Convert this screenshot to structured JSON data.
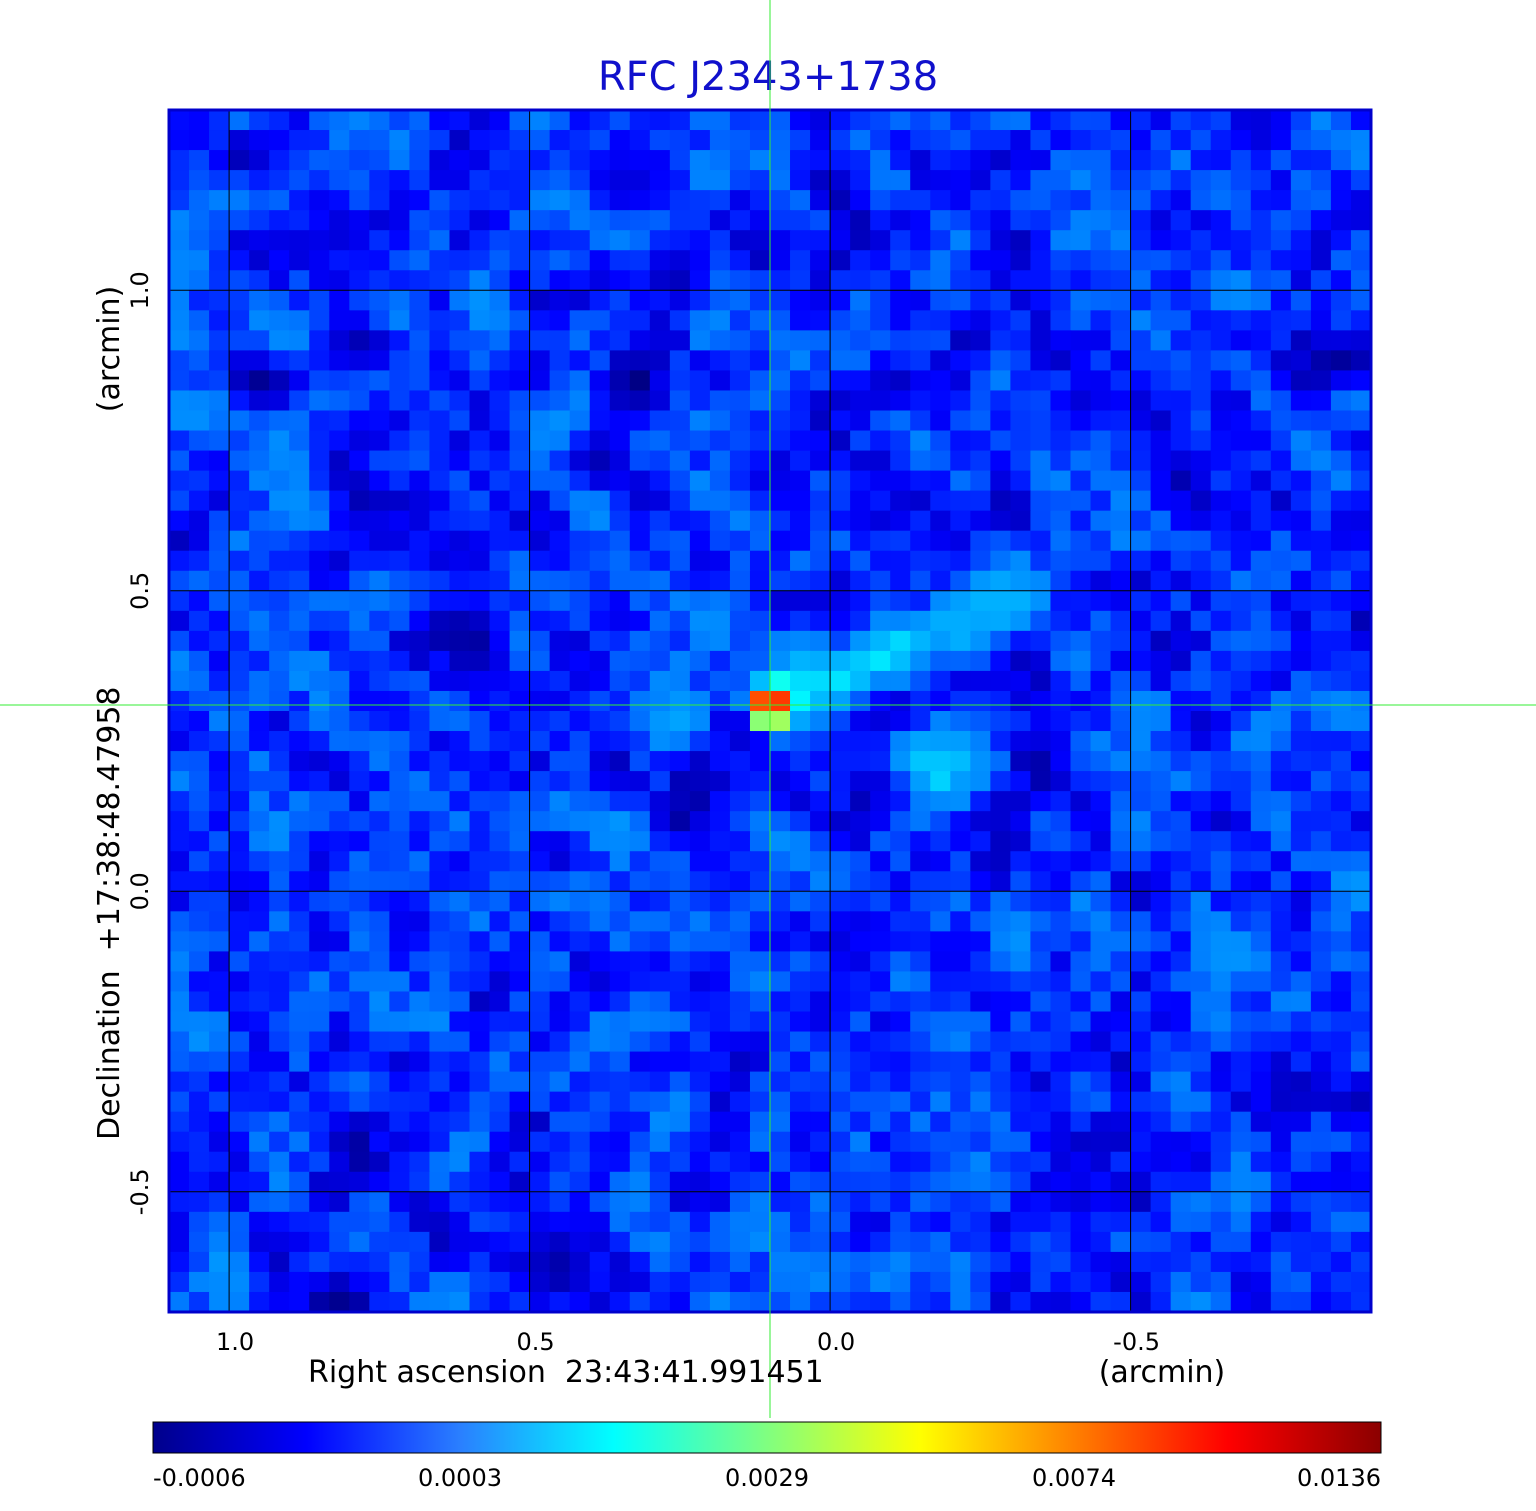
{
  "chart_data": {
    "type": "heatmap",
    "title": "RFC J2343+1738",
    "xlabel": "Right ascension  23:43:41.991451",
    "xunit": "(arcmin)",
    "ylabel": "Declination  +17:38:48.47958",
    "yunit": "(arcmin)",
    "xlim": [
      1.1,
      -0.9
    ],
    "ylim": [
      -0.7,
      1.3
    ],
    "x_ticks": [
      {
        "value": 1.0,
        "label": "1.0"
      },
      {
        "value": 0.5,
        "label": "0.5"
      },
      {
        "value": 0.0,
        "label": "0.0"
      },
      {
        "value": -0.5,
        "label": "-0.5"
      }
    ],
    "y_ticks": [
      {
        "value": 1.0,
        "label": "1.0"
      },
      {
        "value": 0.5,
        "label": "0.5"
      },
      {
        "value": 0.0,
        "label": "0.0"
      },
      {
        "value": -0.5,
        "label": "-0.5"
      }
    ],
    "grid": true,
    "crosshair": {
      "x": 0.1,
      "y": 0.31
    },
    "colorbar": {
      "ticks": [
        "-0.0006",
        "0.0003",
        "0.0029",
        "0.0074",
        "0.0136"
      ],
      "colors": [
        "#00008b",
        "#0000ff",
        "#2a7fff",
        "#00ffff",
        "#80ff80",
        "#ffff00",
        "#ff8000",
        "#ff0000",
        "#8b0000"
      ],
      "placement": "bottom"
    },
    "background_level": 0.0,
    "peak": {
      "x": 0.1,
      "y": 0.31,
      "value": 0.0136
    },
    "features": [
      {
        "kind": "jet",
        "from": [
          0.05,
          0.33
        ],
        "to": [
          -0.3,
          0.49
        ],
        "value": 0.0015
      },
      {
        "kind": "blob",
        "x": -0.18,
        "y": 0.21,
        "value": 0.0012
      },
      {
        "kind": "blob",
        "x": 0.27,
        "y": 0.28,
        "value": 0.0005
      }
    ]
  },
  "colors": {
    "title": "#1010cc",
    "frame": "#0000cc",
    "grid": "#000000",
    "crosshair": "#33ee33"
  }
}
